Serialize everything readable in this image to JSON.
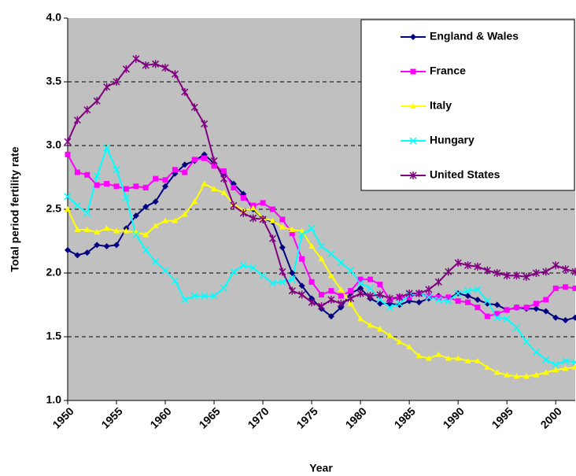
{
  "chart_data": {
    "type": "line",
    "x_label": "Year",
    "y_label": "Total period fertility rate",
    "x": [
      1950,
      1951,
      1952,
      1953,
      1954,
      1955,
      1956,
      1957,
      1958,
      1959,
      1960,
      1961,
      1962,
      1963,
      1964,
      1965,
      1966,
      1967,
      1968,
      1969,
      1970,
      1971,
      1972,
      1973,
      1974,
      1975,
      1976,
      1977,
      1978,
      1979,
      1980,
      1981,
      1982,
      1983,
      1984,
      1985,
      1986,
      1987,
      1988,
      1989,
      1990,
      1991,
      1992,
      1993,
      1994,
      1995,
      1996,
      1997,
      1998,
      1999,
      2000,
      2001,
      2002
    ],
    "xlim": [
      1950,
      2002
    ],
    "xticks": [
      1950,
      1955,
      1960,
      1965,
      1970,
      1975,
      1980,
      1985,
      1990,
      1995,
      2000
    ],
    "ylim": [
      1.0,
      4.0
    ],
    "yticks": [
      {
        "value": 1.0,
        "label": "1.0"
      },
      {
        "value": 1.5,
        "label": "1.5"
      },
      {
        "value": 2.0,
        "label": "2.0"
      },
      {
        "value": 2.5,
        "label": "2.5"
      },
      {
        "value": 3.0,
        "label": "3.0"
      },
      {
        "value": 3.5,
        "label": "3.5"
      },
      {
        "value": 4.0,
        "label": "4.0"
      }
    ],
    "grid": true,
    "legend": "top-right",
    "series": [
      {
        "name": "England & Wales",
        "color": "#000080",
        "marker": "diamond",
        "values": [
          2.18,
          2.14,
          2.16,
          2.22,
          2.21,
          2.22,
          2.35,
          2.45,
          2.52,
          2.56,
          2.68,
          2.78,
          2.85,
          2.88,
          2.93,
          2.86,
          2.78,
          2.7,
          2.62,
          2.5,
          2.43,
          2.4,
          2.2,
          2.0,
          1.9,
          1.8,
          1.72,
          1.66,
          1.73,
          1.84,
          1.88,
          1.8,
          1.76,
          1.76,
          1.75,
          1.78,
          1.77,
          1.8,
          1.82,
          1.8,
          1.84,
          1.82,
          1.79,
          1.76,
          1.75,
          1.71,
          1.73,
          1.72,
          1.72,
          1.7,
          1.65,
          1.63,
          1.65
        ]
      },
      {
        "name": "France",
        "color": "#ff00ff",
        "marker": "square",
        "values": [
          2.93,
          2.79,
          2.77,
          2.69,
          2.7,
          2.68,
          2.66,
          2.68,
          2.67,
          2.74,
          2.73,
          2.81,
          2.79,
          2.89,
          2.9,
          2.84,
          2.8,
          2.67,
          2.59,
          2.53,
          2.55,
          2.5,
          2.42,
          2.31,
          2.11,
          1.93,
          1.83,
          1.86,
          1.82,
          1.86,
          1.95,
          1.95,
          1.91,
          1.79,
          1.81,
          1.81,
          1.84,
          1.82,
          1.81,
          1.81,
          1.78,
          1.77,
          1.73,
          1.66,
          1.68,
          1.71,
          1.73,
          1.73,
          1.76,
          1.79,
          1.88,
          1.89,
          1.88
        ]
      },
      {
        "name": "Italy",
        "color": "#ffff00",
        "marker": "triangle",
        "values": [
          2.5,
          2.34,
          2.34,
          2.32,
          2.35,
          2.33,
          2.33,
          2.32,
          2.3,
          2.37,
          2.41,
          2.41,
          2.46,
          2.56,
          2.7,
          2.66,
          2.63,
          2.54,
          2.49,
          2.51,
          2.43,
          2.41,
          2.36,
          2.34,
          2.33,
          2.21,
          2.11,
          1.98,
          1.87,
          1.76,
          1.64,
          1.59,
          1.56,
          1.51,
          1.46,
          1.42,
          1.35,
          1.33,
          1.36,
          1.33,
          1.33,
          1.31,
          1.31,
          1.26,
          1.22,
          1.2,
          1.19,
          1.19,
          1.2,
          1.22,
          1.24,
          1.25,
          1.26
        ]
      },
      {
        "name": "Hungary",
        "color": "#00ffff",
        "marker": "x",
        "values": [
          2.6,
          2.53,
          2.47,
          2.76,
          2.98,
          2.81,
          2.59,
          2.3,
          2.18,
          2.09,
          2.02,
          1.94,
          1.79,
          1.82,
          1.82,
          1.82,
          1.88,
          2.01,
          2.06,
          2.04,
          1.98,
          1.92,
          1.93,
          1.95,
          2.3,
          2.35,
          2.21,
          2.15,
          2.08,
          2.02,
          1.92,
          1.88,
          1.79,
          1.73,
          1.76,
          1.83,
          1.84,
          1.81,
          1.79,
          1.78,
          1.84,
          1.86,
          1.87,
          1.78,
          1.65,
          1.64,
          1.57,
          1.46,
          1.38,
          1.32,
          1.28,
          1.31,
          1.3
        ]
      },
      {
        "name": "United States",
        "color": "#800080",
        "marker": "star",
        "values": [
          3.03,
          3.2,
          3.28,
          3.35,
          3.46,
          3.5,
          3.6,
          3.68,
          3.63,
          3.64,
          3.61,
          3.56,
          3.42,
          3.3,
          3.17,
          2.88,
          2.74,
          2.53,
          2.47,
          2.43,
          2.42,
          2.27,
          2.01,
          1.86,
          1.83,
          1.77,
          1.74,
          1.79,
          1.76,
          1.8,
          1.84,
          1.82,
          1.83,
          1.8,
          1.81,
          1.84,
          1.84,
          1.87,
          1.93,
          2.01,
          2.08,
          2.06,
          2.05,
          2.02,
          2.0,
          1.98,
          1.98,
          1.97,
          2.0,
          2.01,
          2.06,
          2.03,
          2.01
        ]
      }
    ]
  }
}
